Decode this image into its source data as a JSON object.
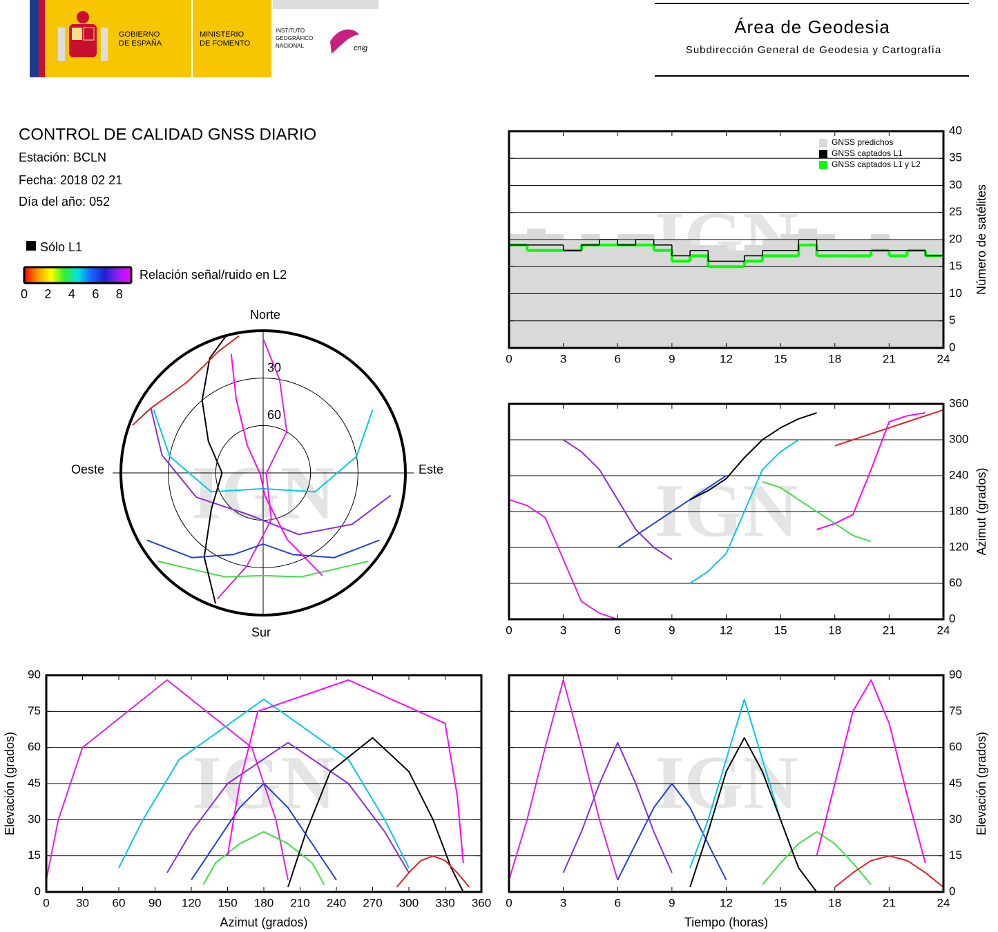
{
  "header": {
    "government": [
      "GOBIERNO",
      "DE ESPAÑA"
    ],
    "ministry": [
      "MINISTERIO",
      "DE FOMENTO"
    ],
    "institute": [
      "INSTITUTO",
      "GEOGRÁFICO",
      "NACIONAL"
    ],
    "agency": "cnig",
    "area": "Área de Geodesia",
    "subdirectorate": "Subdirección General de Geodesia y Cartografía"
  },
  "info": {
    "title": "CONTROL DE CALIDAD GNSS DIARIO",
    "station": "Estación: BCLN",
    "date": "Fecha: 2018 02 21",
    "doy": "Día del año: 052"
  },
  "legend": {
    "l1_only": {
      "label": "Sólo L1",
      "color": "#000000"
    },
    "colorbar": {
      "label": "Relación señal/ruido en L2",
      "lim": [
        0,
        9
      ],
      "ticks": [
        0,
        2,
        4,
        6,
        8
      ],
      "colors": [
        "#ff0000",
        "#ff9900",
        "#ffff00",
        "#33ee33",
        "#00e5e5",
        "#1a66ff",
        "#2020d0",
        "#9020f0",
        "#ff00ff"
      ]
    }
  },
  "watermark": "IGN",
  "chart_data": [
    {
      "type": "step",
      "xlim": [
        0,
        24
      ],
      "xticks": [
        0,
        3,
        6,
        9,
        12,
        15,
        18,
        21,
        24
      ],
      "ylim": [
        0,
        40
      ],
      "yticks": [
        0,
        5,
        10,
        15,
        20,
        25,
        30,
        35,
        40
      ],
      "y_axis_position": "right",
      "ylabel": "Número de satélites",
      "grid": true,
      "legend": "upper right",
      "x": [
        0,
        1,
        2,
        3,
        4,
        5,
        6,
        7,
        8,
        9,
        10,
        11,
        12,
        13,
        14,
        15,
        16,
        17,
        18,
        19,
        20,
        21,
        22,
        23
      ],
      "series": [
        {
          "name": "GNSS predichos",
          "color": "#d9d9d9",
          "fill": true,
          "values": [
            21,
            22,
            21,
            20,
            21,
            20,
            21,
            21,
            20,
            20,
            19,
            19,
            18,
            19,
            20,
            21,
            22,
            21,
            20,
            20,
            21,
            20,
            20,
            20
          ]
        },
        {
          "name": "GNSS captados L1",
          "color": "#000000",
          "values": [
            19,
            19,
            19,
            18,
            19,
            20,
            19,
            20,
            19,
            17,
            18,
            16,
            16,
            17,
            18,
            18,
            20,
            18,
            18,
            18,
            18,
            18,
            18,
            17
          ]
        },
        {
          "name": "GNSS captados L1 y L2",
          "color": "#00ff00",
          "values": [
            19,
            18,
            18,
            18,
            19,
            19,
            19,
            19,
            18,
            16,
            17,
            15,
            15,
            16,
            17,
            17,
            19,
            17,
            17,
            17,
            18,
            17,
            18,
            17
          ]
        }
      ]
    },
    {
      "type": "polar",
      "rlim": [
        90,
        0
      ],
      "rticks": [
        30,
        60
      ],
      "directions": {
        "north": "Norte",
        "south": "Sur",
        "east": "Este",
        "west": "Oeste"
      },
      "series": [
        {
          "color": "#e020e0",
          "azimuth": [
            200,
            190,
            170,
            100,
            30,
            10,
            0
          ],
          "elevation": [
            5,
            30,
            60,
            88,
            60,
            30,
            5
          ]
        },
        {
          "color": "#8a2be2",
          "azimuth": [
            300,
            280,
            250,
            200,
            150,
            120,
            100
          ],
          "elevation": [
            8,
            25,
            45,
            62,
            45,
            25,
            8
          ]
        },
        {
          "color": "#2040e0",
          "azimuth": [
            120,
            140,
            160,
            180,
            200,
            220,
            240
          ],
          "elevation": [
            5,
            20,
            35,
            45,
            35,
            20,
            5
          ]
        },
        {
          "color": "#00c8e8",
          "azimuth": [
            60,
            80,
            110,
            180,
            250,
            280,
            300
          ],
          "elevation": [
            10,
            30,
            55,
            80,
            55,
            30,
            10
          ]
        },
        {
          "color": "#40e040",
          "azimuth": [
            230,
            220,
            200,
            180,
            160,
            140,
            130
          ],
          "elevation": [
            3,
            12,
            20,
            25,
            20,
            12,
            3
          ]
        },
        {
          "color": "#000000",
          "azimuth": [
            200,
            215,
            235,
            270,
            300,
            320,
            335,
            345
          ],
          "elevation": [
            2,
            25,
            50,
            64,
            50,
            30,
            10,
            0
          ]
        },
        {
          "color": "#e02020",
          "azimuth": [
            290,
            300,
            310,
            320,
            330,
            340,
            350
          ],
          "elevation": [
            2,
            8,
            13,
            15,
            13,
            8,
            2
          ]
        },
        {
          "color": "#ff00ff",
          "azimuth": [
            150,
            160,
            175,
            250,
            330,
            340,
            345
          ],
          "elevation": [
            15,
            45,
            75,
            88,
            70,
            40,
            12
          ]
        }
      ]
    },
    {
      "type": "line",
      "xlim": [
        0,
        24
      ],
      "xticks": [
        0,
        3,
        6,
        9,
        12,
        15,
        18,
        21,
        24
      ],
      "ylim": [
        0,
        360
      ],
      "yticks": [
        0,
        60,
        120,
        180,
        240,
        300,
        360
      ],
      "y_axis_position": "right",
      "ylabel": "Azimut (grados)",
      "grid": true,
      "series": [
        {
          "color": "#e020e0",
          "x": [
            0,
            1,
            2,
            3,
            4,
            5,
            6
          ],
          "values": [
            200,
            190,
            170,
            100,
            30,
            10,
            0
          ]
        },
        {
          "color": "#8a2be2",
          "x": [
            3,
            4,
            5,
            6,
            7,
            8,
            9
          ],
          "values": [
            300,
            280,
            250,
            200,
            150,
            120,
            100
          ]
        },
        {
          "color": "#2040e0",
          "x": [
            6,
            7,
            8,
            9,
            10,
            11,
            12
          ],
          "values": [
            120,
            140,
            160,
            180,
            200,
            220,
            240
          ]
        },
        {
          "color": "#00c8e8",
          "x": [
            10,
            11,
            12,
            13,
            14,
            15,
            16
          ],
          "values": [
            60,
            80,
            110,
            180,
            250,
            280,
            300
          ]
        },
        {
          "color": "#40e040",
          "x": [
            14,
            15,
            16,
            17,
            18,
            19,
            20
          ],
          "values": [
            230,
            220,
            200,
            180,
            160,
            140,
            130
          ]
        },
        {
          "color": "#000000",
          "x": [
            10,
            11,
            12,
            13,
            14,
            15,
            16,
            17
          ],
          "values": [
            200,
            215,
            235,
            270,
            300,
            320,
            335,
            345
          ]
        },
        {
          "color": "#e02020",
          "x": [
            18,
            19,
            20,
            21,
            22,
            23,
            24
          ],
          "values": [
            290,
            300,
            310,
            320,
            330,
            340,
            350
          ]
        },
        {
          "color": "#ff00ff",
          "x": [
            17,
            18,
            19,
            20,
            21,
            22,
            23
          ],
          "values": [
            150,
            160,
            175,
            250,
            330,
            340,
            345
          ]
        }
      ]
    },
    {
      "type": "line",
      "xlim": [
        0,
        360
      ],
      "xticks": [
        0,
        30,
        60,
        90,
        120,
        150,
        180,
        210,
        240,
        270,
        300,
        330,
        360
      ],
      "ylim": [
        0,
        90
      ],
      "yticks": [
        0,
        15,
        30,
        45,
        60,
        75,
        90
      ],
      "y_axis_position": "left",
      "xlabel": "Azimut (grados)",
      "ylabel": "Elevación (grados)",
      "grid": true,
      "series": [
        {
          "color": "#e020e0",
          "x": [
            200,
            190,
            170,
            100,
            30,
            10,
            0
          ],
          "values": [
            5,
            30,
            60,
            88,
            60,
            30,
            5
          ]
        },
        {
          "color": "#8a2be2",
          "x": [
            300,
            280,
            250,
            200,
            150,
            120,
            100
          ],
          "values": [
            8,
            25,
            45,
            62,
            45,
            25,
            8
          ]
        },
        {
          "color": "#2040e0",
          "x": [
            120,
            140,
            160,
            180,
            200,
            220,
            240
          ],
          "values": [
            5,
            20,
            35,
            45,
            35,
            20,
            5
          ]
        },
        {
          "color": "#00c8e8",
          "x": [
            60,
            80,
            110,
            180,
            250,
            280,
            300
          ],
          "values": [
            10,
            30,
            55,
            80,
            55,
            30,
            10
          ]
        },
        {
          "color": "#40e040",
          "x": [
            230,
            220,
            200,
            180,
            160,
            140,
            130
          ],
          "values": [
            3,
            12,
            20,
            25,
            20,
            12,
            3
          ]
        },
        {
          "color": "#000000",
          "x": [
            200,
            215,
            235,
            270,
            300,
            320,
            335,
            345
          ],
          "values": [
            2,
            25,
            50,
            64,
            50,
            30,
            10,
            0
          ]
        },
        {
          "color": "#e02020",
          "x": [
            290,
            300,
            310,
            320,
            330,
            340,
            350
          ],
          "values": [
            2,
            8,
            13,
            15,
            13,
            8,
            2
          ]
        },
        {
          "color": "#ff00ff",
          "x": [
            150,
            160,
            175,
            250,
            330,
            340,
            345
          ],
          "values": [
            15,
            45,
            75,
            88,
            70,
            40,
            12
          ]
        }
      ]
    },
    {
      "type": "line",
      "xlim": [
        0,
        24
      ],
      "xticks": [
        0,
        3,
        6,
        9,
        12,
        15,
        18,
        21,
        24
      ],
      "ylim": [
        0,
        90
      ],
      "yticks": [
        0,
        15,
        30,
        45,
        60,
        75,
        90
      ],
      "y_axis_position": "right",
      "xlabel": "Tiempo (horas)",
      "ylabel": "Elevación (grados)",
      "grid": true,
      "series": [
        {
          "color": "#e020e0",
          "x": [
            0,
            1,
            2,
            3,
            4,
            5,
            6
          ],
          "values": [
            5,
            30,
            60,
            88,
            60,
            30,
            5
          ]
        },
        {
          "color": "#8a2be2",
          "x": [
            3,
            4,
            5,
            6,
            7,
            8,
            9
          ],
          "values": [
            8,
            25,
            45,
            62,
            45,
            25,
            8
          ]
        },
        {
          "color": "#2040e0",
          "x": [
            6,
            7,
            8,
            9,
            10,
            11,
            12
          ],
          "values": [
            5,
            20,
            35,
            45,
            35,
            20,
            5
          ]
        },
        {
          "color": "#00c8e8",
          "x": [
            10,
            11,
            12,
            13,
            14,
            15,
            16
          ],
          "values": [
            10,
            30,
            55,
            80,
            55,
            30,
            10
          ]
        },
        {
          "color": "#40e040",
          "x": [
            14,
            15,
            16,
            17,
            18,
            19,
            20
          ],
          "values": [
            3,
            12,
            20,
            25,
            20,
            12,
            3
          ]
        },
        {
          "color": "#000000",
          "x": [
            10,
            11,
            12,
            13,
            14,
            15,
            16,
            17
          ],
          "values": [
            2,
            25,
            50,
            64,
            50,
            30,
            10,
            0
          ]
        },
        {
          "color": "#e02020",
          "x": [
            18,
            19,
            20,
            21,
            22,
            23,
            24
          ],
          "values": [
            2,
            8,
            13,
            15,
            13,
            8,
            2
          ]
        },
        {
          "color": "#ff00ff",
          "x": [
            17,
            18,
            19,
            20,
            21,
            22,
            23
          ],
          "values": [
            15,
            45,
            75,
            88,
            70,
            40,
            12
          ]
        }
      ]
    }
  ]
}
